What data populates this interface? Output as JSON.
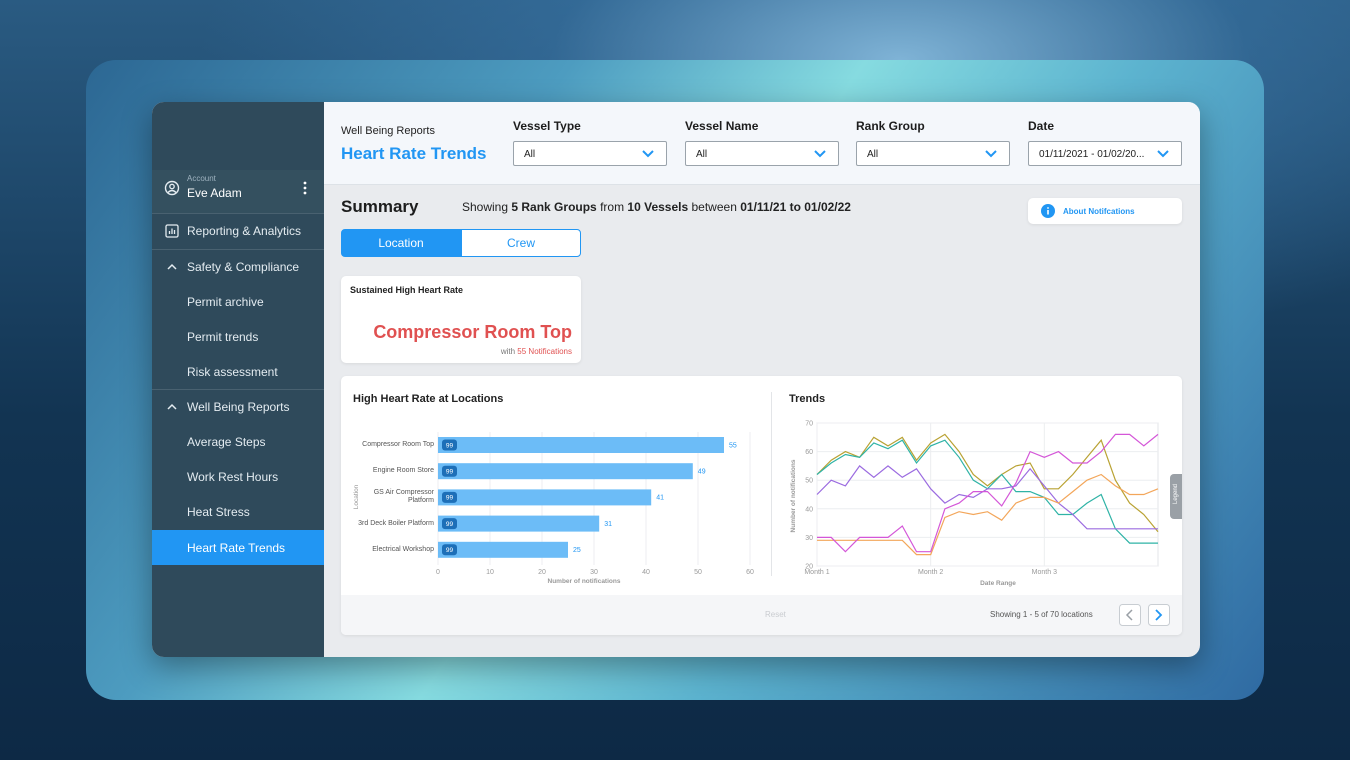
{
  "sidebar": {
    "account_label": "Account",
    "account_name": "Eve Adam",
    "menu": [
      {
        "label": "Reporting & Analytics"
      },
      {
        "label": "Safety & Compliance",
        "children": [
          "Permit archive",
          "Permit trends",
          "Risk assessment"
        ]
      },
      {
        "label": "Well Being Reports",
        "children": [
          "Average Steps",
          "Work Rest Hours",
          "Heat Stress",
          "Heart Rate Trends"
        ]
      }
    ]
  },
  "header": {
    "breadcrumb": "Well Being Reports",
    "title": "Heart Rate Trends",
    "filters": [
      {
        "label": "Vessel Type",
        "value": "All"
      },
      {
        "label": "Vessel Name",
        "value": "All"
      },
      {
        "label": "Rank Group",
        "value": "All"
      },
      {
        "label": "Date",
        "value": "01/11/2021 - 01/02/20..."
      }
    ]
  },
  "summary": {
    "title": "Summary",
    "text_parts": [
      "Showing",
      "5 Rank Groups",
      "from",
      "10 Vessels",
      "between",
      "01/11/21 to 01/02/22"
    ],
    "about_button": "About Notifcations",
    "tabs": [
      "Location",
      "Crew"
    ]
  },
  "highlight_card": {
    "title": "Sustained High Heart Rate",
    "location": "Compressor Room Top",
    "prefix": "with",
    "count_text": "55 Notifications"
  },
  "bar_chart": {
    "type": "bar",
    "orientation": "horizontal",
    "title": "High Heart Rate at Locations",
    "categories": [
      "Compressor Room Top",
      "Engine Room Store",
      "GS Air Compressor Platform",
      "3rd Deck Boiler Platform",
      "Electrical Workshop"
    ],
    "values": [
      55,
      49,
      41,
      31,
      25
    ],
    "badges": [
      "99",
      "99",
      "99",
      "99",
      "99"
    ],
    "color": "#6cbcf7",
    "xlim": [
      0,
      60
    ],
    "xticks": [
      0,
      10,
      20,
      30,
      40,
      50,
      60
    ],
    "xlabel": "Number of notifications",
    "ylabel": "Location",
    "grid": true
  },
  "line_chart": {
    "type": "line",
    "title": "Trends",
    "x": [
      "Month 1",
      null,
      null,
      null,
      null,
      null,
      null,
      null,
      "Month 2",
      null,
      null,
      null,
      null,
      null,
      null,
      null,
      "Month 3",
      null,
      null,
      null,
      null,
      null,
      null,
      null,
      null
    ],
    "series": [
      {
        "color": "#b9a233",
        "values": [
          52,
          57,
          60,
          58,
          65,
          62,
          65,
          57,
          63,
          66,
          60,
          52,
          48,
          52,
          55,
          56,
          47,
          47,
          52,
          58,
          64,
          50,
          42,
          38,
          32
        ]
      },
      {
        "color": "#2fb3a6",
        "values": [
          52,
          56,
          59,
          58,
          63,
          61,
          64,
          56,
          62,
          64,
          58,
          50,
          47,
          52,
          46,
          46,
          44,
          38,
          38,
          42,
          45,
          33,
          28,
          28,
          28
        ]
      },
      {
        "color": "#9b6be0",
        "values": [
          45,
          50,
          48,
          55,
          51,
          55,
          51,
          54,
          47,
          42,
          45,
          44,
          47,
          47,
          48,
          54,
          48,
          42,
          38,
          33,
          33,
          33,
          33,
          33,
          33
        ]
      },
      {
        "color": "#f3a65a",
        "values": [
          29,
          29,
          29,
          29,
          29,
          29,
          29,
          24,
          24,
          37,
          39,
          38,
          39,
          36,
          42,
          44,
          44,
          42,
          46,
          50,
          52,
          48,
          45,
          45,
          47
        ]
      },
      {
        "color": "#d457d8",
        "values": [
          30,
          30,
          25,
          30,
          30,
          30,
          34,
          25,
          25,
          40,
          42,
          46,
          46,
          41,
          49,
          60,
          58,
          60,
          56,
          56,
          60,
          66,
          66,
          62,
          66
        ]
      }
    ],
    "ylim": [
      20,
      70
    ],
    "yticks": [
      20,
      30,
      40,
      50,
      60,
      70
    ],
    "xlabel": "Date Range",
    "ylabel": "Number of notifications",
    "grid": true,
    "legend_tab": "Legend"
  },
  "footer": {
    "reset": "Reset",
    "pagination": "Showing 1 - 5 of 70 locations"
  }
}
